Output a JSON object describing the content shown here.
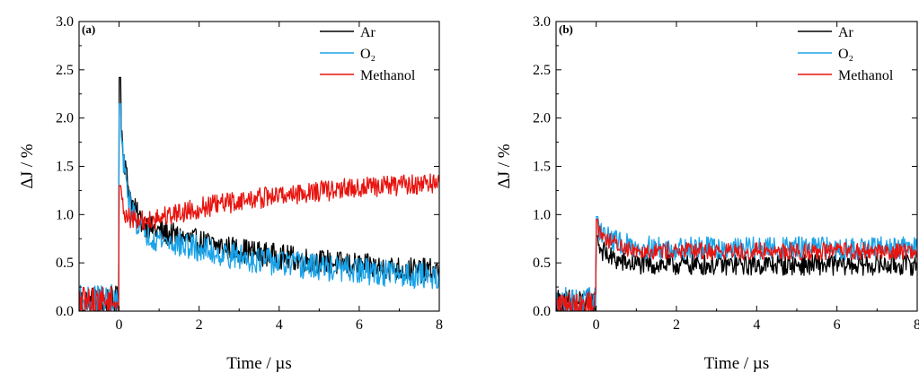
{
  "chart_data": [
    {
      "type": "line",
      "panel_label": "(a)",
      "xlabel": "Time / µs",
      "ylabel": "ΔJ / %",
      "xlim": [
        -1,
        8
      ],
      "ylim": [
        0,
        3.0
      ],
      "xticks": [
        "0",
        "2",
        "4",
        "6",
        "8"
      ],
      "yticks": [
        "0.0",
        "0.5",
        "1.0",
        "1.5",
        "2.0",
        "2.5",
        "3.0"
      ],
      "legend_position": "top-right",
      "series": [
        {
          "name": "Ar",
          "color": "#000000",
          "pre": 0.08,
          "peak": 2.42,
          "fast_amp": 1.35,
          "fast_tau": 0.18,
          "slow_amp": 0.65,
          "slow_tau": 4.5,
          "plateau": 0.3,
          "rise": 0,
          "rise_tau": 1,
          "noise": 0.13
        },
        {
          "name": "O₂",
          "color": "#1aa3e8",
          "pre": 0.08,
          "peak": 2.15,
          "fast_amp": 1.25,
          "fast_tau": 0.18,
          "slow_amp": 0.6,
          "slow_tau": 4.0,
          "plateau": 0.28,
          "rise": 0,
          "rise_tau": 1,
          "noise": 0.14
        },
        {
          "name": "Methanol",
          "color": "#e8140f",
          "pre": 0.1,
          "peak": 1.3,
          "fast_amp": 0.45,
          "fast_tau": 0.15,
          "slow_amp": 0,
          "slow_tau": 1,
          "plateau": 0.85,
          "rise": 0.55,
          "rise_tau": 4.0,
          "noise": 0.11
        }
      ]
    },
    {
      "type": "line",
      "panel_label": "(b)",
      "xlabel": "Time / µs",
      "ylabel": "ΔJ / %",
      "xlim": [
        -1,
        8
      ],
      "ylim": [
        0,
        3.0
      ],
      "xticks": [
        "0",
        "2",
        "4",
        "6",
        "8"
      ],
      "yticks": [
        "0.0",
        "0.5",
        "1.0",
        "1.5",
        "2.0",
        "2.5",
        "3.0"
      ],
      "legend_position": "top-right",
      "series": [
        {
          "name": "Ar",
          "color": "#000000",
          "pre": 0.08,
          "peak": 0.78,
          "fast_amp": 0.25,
          "fast_tau": 0.3,
          "slow_amp": 0,
          "slow_tau": 1,
          "plateau": 0.48,
          "rise": 0,
          "rise_tau": 1,
          "noise": 0.11
        },
        {
          "name": "O₂",
          "color": "#1aa3e8",
          "pre": 0.08,
          "peak": 0.98,
          "fast_amp": 0.25,
          "fast_tau": 0.4,
          "slow_amp": 0,
          "slow_tau": 1,
          "plateau": 0.65,
          "rise": 0,
          "rise_tau": 1,
          "noise": 0.12
        },
        {
          "name": "Methanol",
          "color": "#e8140f",
          "pre": 0.08,
          "peak": 0.95,
          "fast_amp": 0.25,
          "fast_tau": 0.4,
          "slow_amp": 0,
          "slow_tau": 1,
          "plateau": 0.62,
          "rise": 0,
          "rise_tau": 1,
          "noise": 0.09
        }
      ]
    }
  ]
}
